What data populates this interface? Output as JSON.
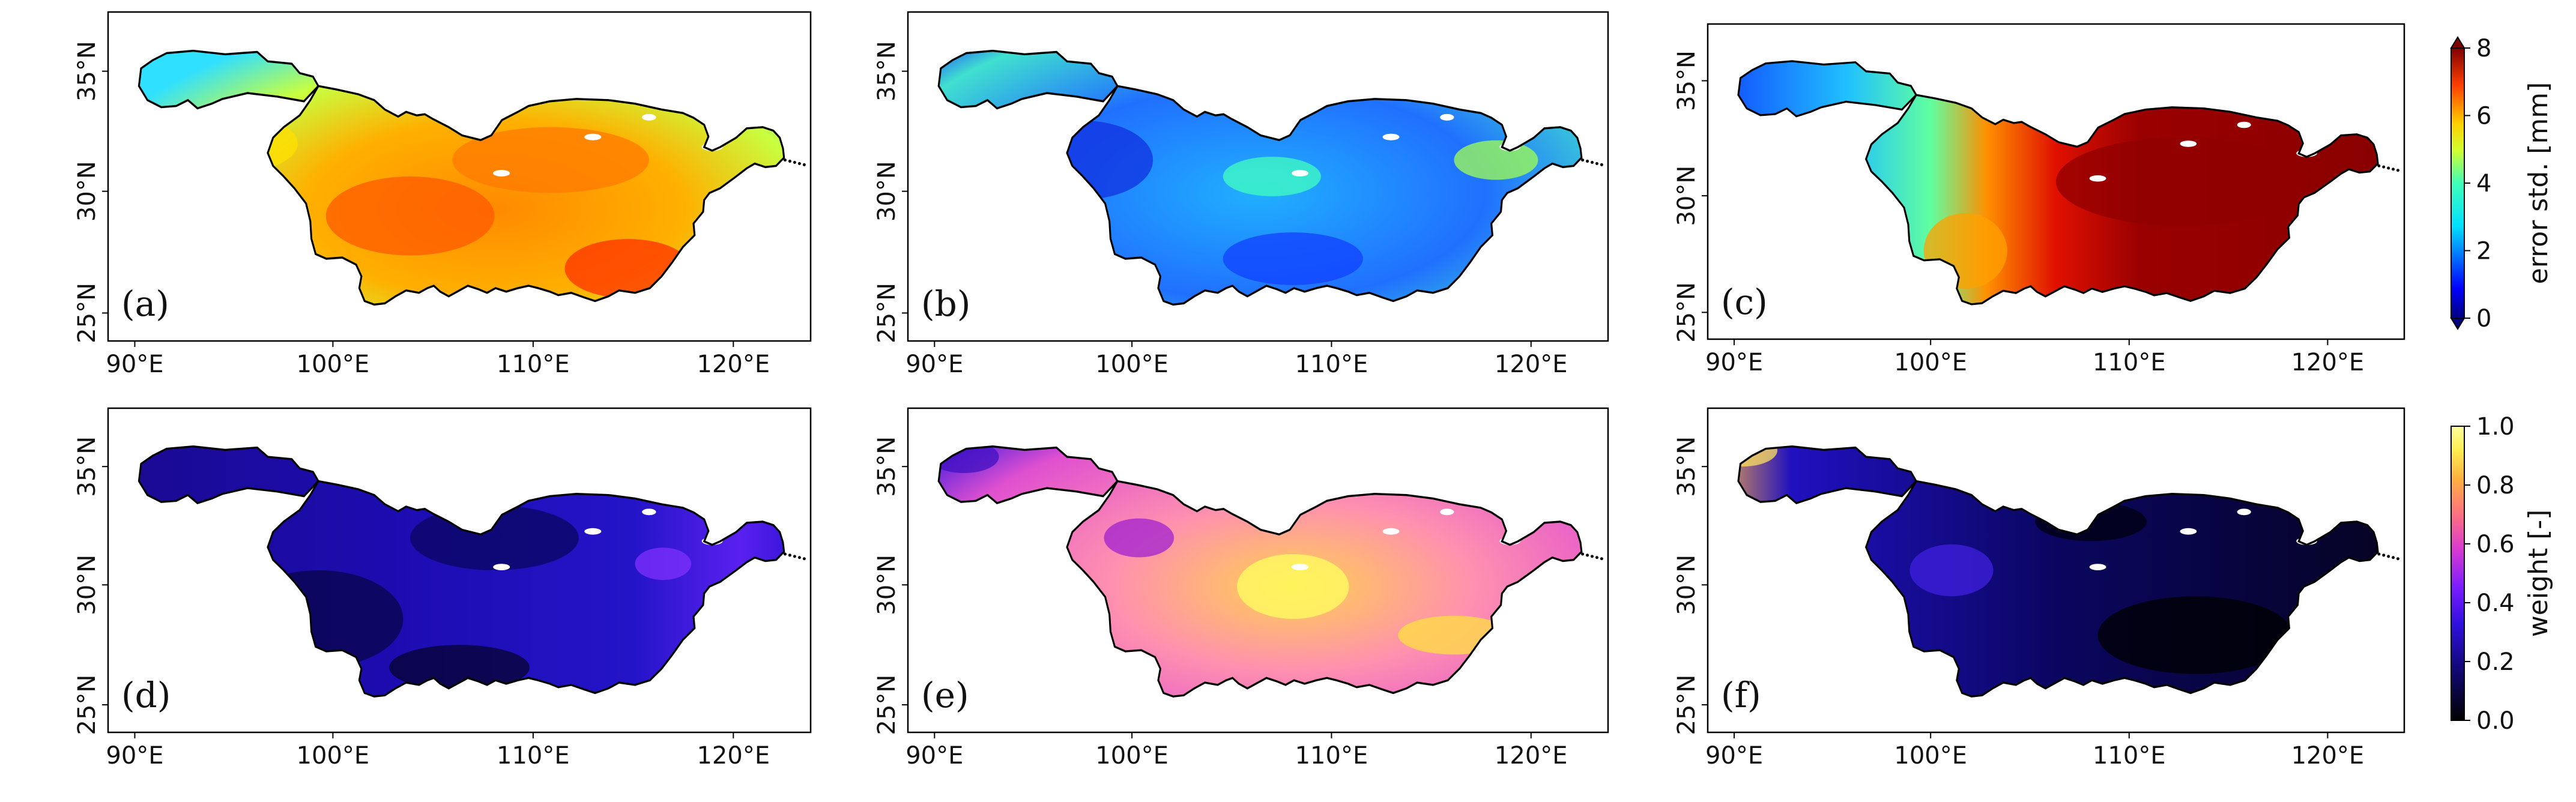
{
  "panels": [
    {
      "label": "(a)",
      "map": "error-std"
    },
    {
      "label": "(b)",
      "map": "error-std"
    },
    {
      "label": "(c)",
      "map": "error-std"
    },
    {
      "label": "(d)",
      "map": "weight"
    },
    {
      "label": "(e)",
      "map": "weight"
    },
    {
      "label": "(f)",
      "map": "weight"
    }
  ],
  "lon_ticks": [
    "90°E",
    "100°E",
    "110°E",
    "120°E"
  ],
  "lat_ticks": [
    "25°N",
    "30°N",
    "35°N"
  ],
  "colorbars": {
    "error_std": {
      "title": "error std. [mm]",
      "ticks": [
        "0",
        "2",
        "4",
        "6",
        "8"
      ],
      "range": [
        0,
        8
      ],
      "extend": "both",
      "colormap": "jet",
      "colors": [
        "#00007f",
        "#0000ff",
        "#0080ff",
        "#00e0ff",
        "#40ffb8",
        "#b8ff40",
        "#ffd000",
        "#ff6000",
        "#e00000",
        "#7f0000"
      ]
    },
    "weight": {
      "title": "weight [-]",
      "ticks": [
        "0.0",
        "0.2",
        "0.4",
        "0.6",
        "0.8",
        "1.0"
      ],
      "range": [
        0,
        1
      ],
      "colormap": "gnuplot2",
      "colors": [
        "#000000",
        "#1a0ab0",
        "#4a10ff",
        "#9020f0",
        "#e040c0",
        "#ff7080",
        "#ffb040",
        "#ffff60",
        "#ffffff"
      ]
    }
  }
}
